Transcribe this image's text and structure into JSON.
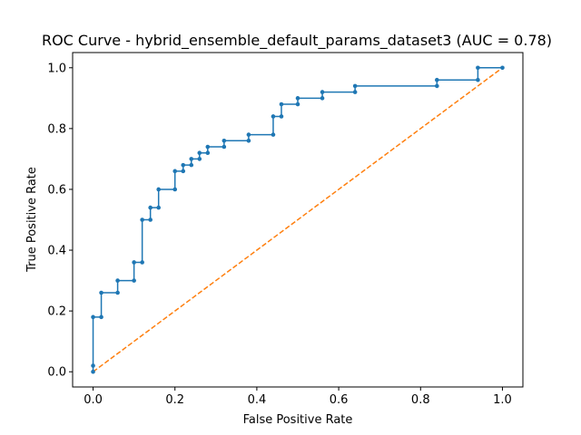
{
  "chart_data": {
    "type": "line",
    "title": "ROC Curve - hybrid_ensemble_default_params_dataset3 (AUC = 0.78)",
    "xlabel": "False Positive Rate",
    "ylabel": "True Positive Rate",
    "xlim": [
      -0.05,
      1.05
    ],
    "ylim": [
      -0.05,
      1.05
    ],
    "xticks": [
      "0.0",
      "0.2",
      "0.4",
      "0.6",
      "0.8",
      "1.0"
    ],
    "yticks": [
      "0.0",
      "0.2",
      "0.4",
      "0.6",
      "0.8",
      "1.0"
    ],
    "grid": false,
    "series": [
      {
        "style": "step-with-markers",
        "color": "#1f77b4",
        "x": [
          0.0,
          0.0,
          0.0,
          0.02,
          0.02,
          0.06,
          0.06,
          0.1,
          0.1,
          0.12,
          0.12,
          0.14,
          0.14,
          0.16,
          0.16,
          0.2,
          0.2,
          0.22,
          0.22,
          0.24,
          0.24,
          0.26,
          0.26,
          0.28,
          0.28,
          0.32,
          0.32,
          0.38,
          0.38,
          0.44,
          0.44,
          0.46,
          0.46,
          0.5,
          0.5,
          0.56,
          0.56,
          0.64,
          0.64,
          0.84,
          0.84,
          0.94,
          0.94,
          1.0
        ],
        "y": [
          0.0,
          0.02,
          0.18,
          0.18,
          0.26,
          0.26,
          0.3,
          0.3,
          0.36,
          0.36,
          0.5,
          0.5,
          0.54,
          0.54,
          0.6,
          0.6,
          0.66,
          0.66,
          0.68,
          0.68,
          0.7,
          0.7,
          0.72,
          0.72,
          0.74,
          0.74,
          0.76,
          0.76,
          0.78,
          0.78,
          0.84,
          0.84,
          0.88,
          0.88,
          0.9,
          0.9,
          0.92,
          0.92,
          0.94,
          0.94,
          0.96,
          0.96,
          1.0,
          1.0
        ]
      },
      {
        "style": "dashed",
        "color": "#ff7f0e",
        "x": [
          0,
          1
        ],
        "y": [
          0,
          1
        ]
      }
    ]
  }
}
